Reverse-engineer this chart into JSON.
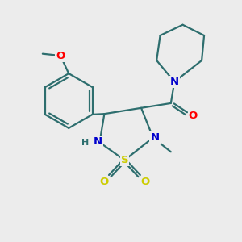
{
  "bg_color": "#ececec",
  "bond_color": "#2d6e6e",
  "bond_width": 1.6,
  "atom_colors": {
    "N": "#0000cc",
    "O_red": "#ff0000",
    "O_yellow": "#cccc00",
    "S": "#cccc00",
    "C": "#2d6e6e"
  },
  "figsize": [
    3.0,
    3.0
  ],
  "dpi": 100,
  "xlim": [
    0,
    10
  ],
  "ylim": [
    0,
    10
  ]
}
